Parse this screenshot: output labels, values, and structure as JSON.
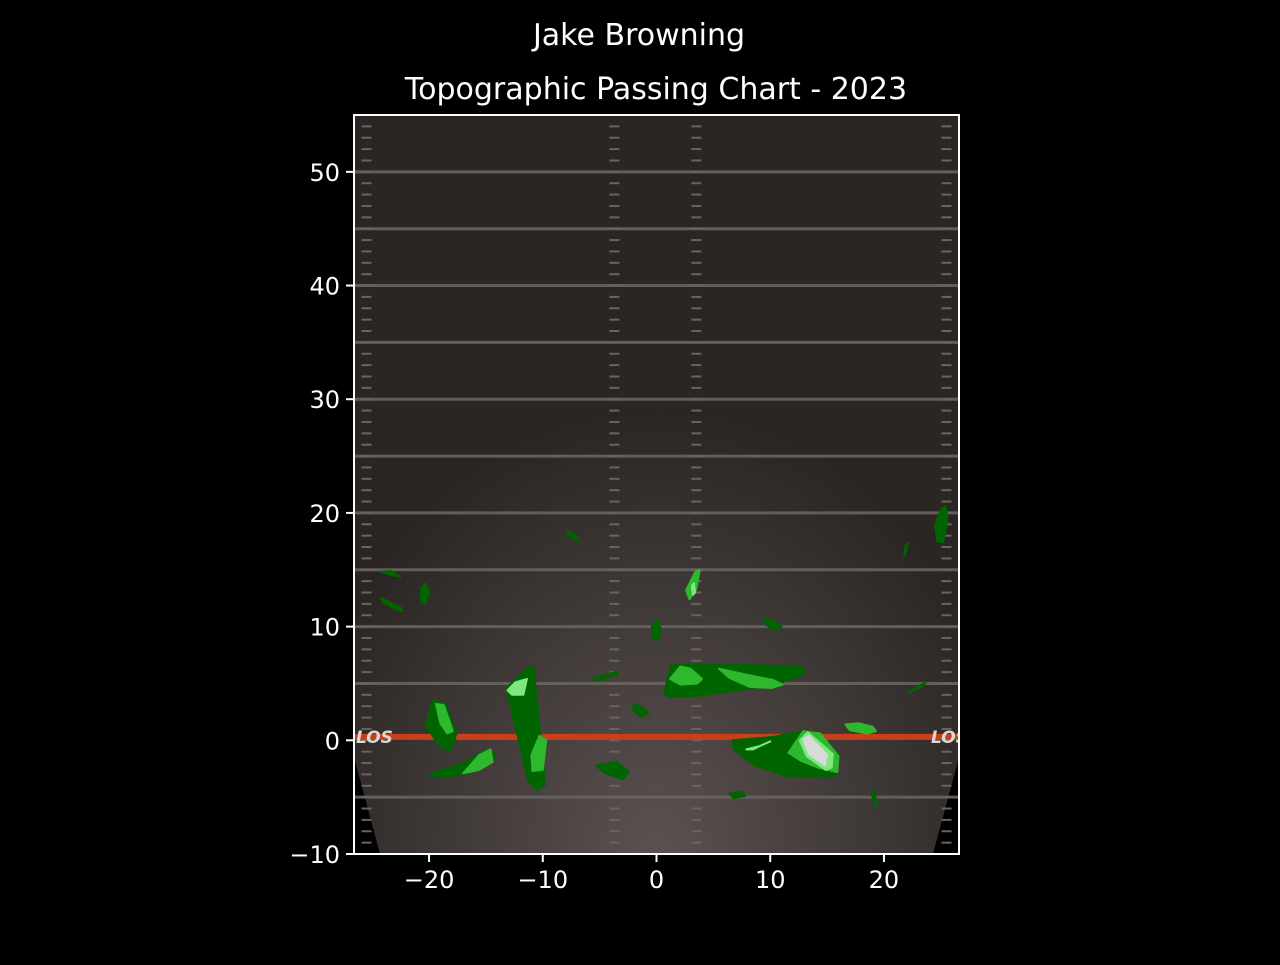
{
  "chart_data": {
    "type": "heatmap",
    "suptitle": "Jake Browning",
    "title": "Topographic Passing Chart - 2023",
    "xlabel": "",
    "ylabel": "",
    "xlim": [
      -26.6,
      26.6
    ],
    "ylim": [
      -10,
      55
    ],
    "xticks": [
      -20,
      -10,
      0,
      10,
      20
    ],
    "xtick_labels": [
      "−20",
      "−10",
      "0",
      "10",
      "20"
    ],
    "yticks": [
      -10,
      0,
      10,
      20,
      30,
      40,
      50
    ],
    "ytick_labels": [
      "−10",
      "0",
      "10",
      "20",
      "30",
      "40",
      "50"
    ],
    "field": {
      "line_of_scrimmage_y": 0.3,
      "los_text": "LOS",
      "yard_lines": [
        -5,
        5,
        10,
        15,
        20,
        25,
        30,
        35,
        40,
        45,
        50
      ],
      "hash_x": [
        -3.7,
        3.5,
        -25.5,
        25.5
      ]
    },
    "contour_levels": [
      {
        "level": 1,
        "color": "#006400"
      },
      {
        "level": 2,
        "color": "#2db82d"
      },
      {
        "level": 3,
        "color": "#7ee87e"
      },
      {
        "level": 4,
        "color": "#d9d9d9"
      }
    ],
    "regions": [
      {
        "level": 1,
        "points": [
          [
            -20.3,
            1.3
          ],
          [
            -19.7,
            3.5
          ],
          [
            -18.6,
            3.2
          ],
          [
            -17.6,
            0.5
          ],
          [
            -18.2,
            -0.9
          ],
          [
            -19.0,
            -0.6
          ]
        ]
      },
      {
        "level": 2,
        "points": [
          [
            -19.4,
            3.2
          ],
          [
            -18.7,
            3.1
          ],
          [
            -17.9,
            0.8
          ],
          [
            -18.4,
            0.6
          ],
          [
            -19.0,
            1.5
          ]
        ]
      },
      {
        "level": 1,
        "points": [
          [
            -20.0,
            -3.0
          ],
          [
            -17.0,
            -2.0
          ],
          [
            -14.8,
            -0.8
          ],
          [
            -14.2,
            -1.2
          ],
          [
            -14.7,
            -2.1
          ],
          [
            -16.7,
            -2.9
          ],
          [
            -18.9,
            -3.3
          ]
        ]
      },
      {
        "level": 2,
        "points": [
          [
            -17.0,
            -2.9
          ],
          [
            -15.6,
            -1.3
          ],
          [
            -14.6,
            -0.8
          ],
          [
            -14.4,
            -1.9
          ],
          [
            -15.6,
            -2.6
          ]
        ]
      },
      {
        "level": 1,
        "points": [
          [
            -13.2,
            4.6
          ],
          [
            -11.3,
            6.4
          ],
          [
            -10.8,
            6.4
          ],
          [
            -9.8,
            -3.9
          ],
          [
            -10.5,
            -4.4
          ],
          [
            -11.3,
            -3.5
          ]
        ]
      },
      {
        "level": 2,
        "points": [
          [
            -10.9,
            -2.7
          ],
          [
            -10.0,
            -2.6
          ],
          [
            -9.7,
            0.0
          ],
          [
            -10.3,
            0.4
          ],
          [
            -11.0,
            -1.3
          ]
        ]
      },
      {
        "level": 3,
        "points": [
          [
            -13.1,
            4.4
          ],
          [
            -12.4,
            5.1
          ],
          [
            -11.4,
            5.4
          ],
          [
            -11.7,
            4.0
          ],
          [
            -12.7,
            4.0
          ]
        ]
      },
      {
        "level": 1,
        "points": [
          [
            -24.2,
            12.5
          ],
          [
            -23.2,
            12.0
          ],
          [
            -22.5,
            11.7
          ],
          [
            -22.3,
            11.3
          ],
          [
            -23.0,
            11.6
          ],
          [
            -24.0,
            12.1
          ]
        ]
      },
      {
        "level": 1,
        "points": [
          [
            -24.2,
            14.8
          ],
          [
            -23.1,
            14.5
          ],
          [
            -22.5,
            14.4
          ],
          [
            -23.4,
            14.9
          ]
        ]
      },
      {
        "level": 1,
        "points": [
          [
            -20.7,
            13.4
          ],
          [
            -20.3,
            13.8
          ],
          [
            -20.0,
            13.0
          ],
          [
            -20.3,
            12.0
          ],
          [
            -20.7,
            12.2
          ]
        ]
      },
      {
        "level": 1,
        "points": [
          [
            -7.9,
            18.2
          ],
          [
            -7.5,
            18.3
          ],
          [
            -6.8,
            17.7
          ],
          [
            -7.1,
            17.6
          ]
        ]
      },
      {
        "level": 1,
        "points": [
          [
            -5.7,
            5.4
          ],
          [
            -3.3,
            6.1
          ],
          [
            -3.5,
            5.8
          ],
          [
            -5.0,
            5.3
          ]
        ]
      },
      {
        "level": 1,
        "points": [
          [
            -2.0,
            3.2
          ],
          [
            -1.1,
            2.8
          ],
          [
            -0.7,
            2.3
          ],
          [
            -1.4,
            2.1
          ],
          [
            -2.1,
            2.7
          ]
        ]
      },
      {
        "level": 1,
        "points": [
          [
            -5.3,
            -2.2
          ],
          [
            -3.5,
            -1.9
          ],
          [
            -2.4,
            -2.8
          ],
          [
            -3.0,
            -3.4
          ],
          [
            -4.5,
            -2.9
          ]
        ]
      },
      {
        "level": 1,
        "points": [
          [
            -0.4,
            10.2
          ],
          [
            0.1,
            10.6
          ],
          [
            0.4,
            9.7
          ],
          [
            0.0,
            8.7
          ],
          [
            -0.4,
            9.1
          ]
        ]
      },
      {
        "level": 2,
        "points": [
          [
            2.6,
            13.2
          ],
          [
            3.4,
            14.8
          ],
          [
            3.8,
            15.0
          ],
          [
            3.5,
            13.3
          ],
          [
            2.9,
            12.4
          ]
        ]
      },
      {
        "level": 3,
        "points": [
          [
            3.1,
            13.6
          ],
          [
            3.3,
            13.8
          ],
          [
            3.4,
            13.0
          ],
          [
            3.2,
            12.8
          ]
        ]
      },
      {
        "level": 1,
        "points": [
          [
            0.7,
            4.3
          ],
          [
            1.3,
            6.6
          ],
          [
            4.4,
            6.7
          ],
          [
            12.8,
            6.5
          ],
          [
            13.1,
            5.9
          ],
          [
            10.6,
            4.9
          ],
          [
            7.8,
            4.5
          ],
          [
            3.5,
            3.9
          ],
          [
            1.0,
            3.8
          ]
        ]
      },
      {
        "level": 2,
        "points": [
          [
            1.2,
            5.4
          ],
          [
            2.1,
            6.5
          ],
          [
            3.0,
            6.3
          ],
          [
            4.0,
            5.4
          ],
          [
            3.6,
            5.0
          ],
          [
            2.1,
            4.9
          ]
        ]
      },
      {
        "level": 2,
        "points": [
          [
            5.5,
            6.3
          ],
          [
            7.8,
            5.8
          ],
          [
            10.3,
            5.3
          ],
          [
            11.1,
            4.9
          ],
          [
            10.1,
            4.6
          ],
          [
            8.2,
            4.7
          ],
          [
            6.4,
            5.5
          ]
        ]
      },
      {
        "level": 1,
        "points": [
          [
            9.4,
            10.7
          ],
          [
            10.1,
            10.6
          ],
          [
            11.0,
            10.0
          ],
          [
            10.5,
            9.7
          ],
          [
            9.7,
            10.1
          ]
        ]
      },
      {
        "level": 1,
        "points": [
          [
            6.7,
            0.0
          ],
          [
            10.3,
            0.3
          ],
          [
            12.7,
            0.8
          ],
          [
            14.5,
            0.4
          ],
          [
            16.1,
            -1.4
          ],
          [
            15.6,
            -3.2
          ],
          [
            11.6,
            -3.2
          ],
          [
            8.6,
            -2.2
          ],
          [
            6.8,
            -0.8
          ]
        ]
      },
      {
        "level": 2,
        "points": [
          [
            11.6,
            -1.1
          ],
          [
            12.9,
            0.8
          ],
          [
            14.4,
            0.6
          ],
          [
            16.0,
            -1.4
          ],
          [
            15.9,
            -2.8
          ],
          [
            14.2,
            -2.4
          ],
          [
            12.7,
            -1.8
          ]
        ]
      },
      {
        "level": 3,
        "points": [
          [
            7.9,
            -0.8
          ],
          [
            9.1,
            -0.5
          ],
          [
            10.0,
            -0.1
          ],
          [
            9.3,
            -0.4
          ],
          [
            8.5,
            -0.8
          ]
        ]
      },
      {
        "level": 3,
        "points": [
          [
            12.6,
            0.0
          ],
          [
            13.3,
            0.7
          ],
          [
            15.5,
            -1.2
          ],
          [
            15.4,
            -2.4
          ],
          [
            14.9,
            -2.6
          ],
          [
            13.2,
            -1.4
          ]
        ]
      },
      {
        "level": 4,
        "points": [
          [
            12.9,
            0.1
          ],
          [
            13.4,
            0.4
          ],
          [
            15.0,
            -1.3
          ],
          [
            14.8,
            -2.2
          ],
          [
            13.4,
            -1.2
          ]
        ]
      },
      {
        "level": 1,
        "points": [
          [
            6.4,
            -4.7
          ],
          [
            7.5,
            -4.5
          ],
          [
            7.8,
            -4.9
          ],
          [
            6.8,
            -5.1
          ]
        ]
      },
      {
        "level": 2,
        "points": [
          [
            16.6,
            1.4
          ],
          [
            17.8,
            1.5
          ],
          [
            19.0,
            1.2
          ],
          [
            19.3,
            0.8
          ],
          [
            18.5,
            0.6
          ],
          [
            17.0,
            0.9
          ]
        ]
      },
      {
        "level": 1,
        "points": [
          [
            18.9,
            -4.4
          ],
          [
            19.1,
            -4.4
          ],
          [
            19.4,
            -5.5
          ],
          [
            19.3,
            -5.8
          ],
          [
            19.0,
            -5.1
          ]
        ]
      },
      {
        "level": 1,
        "points": [
          [
            22.2,
            4.2
          ],
          [
            23.3,
            4.7
          ],
          [
            23.7,
            5.1
          ],
          [
            22.9,
            4.7
          ]
        ]
      },
      {
        "level": 1,
        "points": [
          [
            21.8,
            16.5
          ],
          [
            21.9,
            17.1
          ],
          [
            22.1,
            17.4
          ],
          [
            22.0,
            16.8
          ],
          [
            21.8,
            16.2
          ]
        ]
      },
      {
        "level": 1,
        "points": [
          [
            24.5,
            18.9
          ],
          [
            25.0,
            20.3
          ],
          [
            25.4,
            20.6
          ],
          [
            25.6,
            19.5
          ],
          [
            25.2,
            17.4
          ],
          [
            24.7,
            17.5
          ]
        ]
      }
    ]
  }
}
